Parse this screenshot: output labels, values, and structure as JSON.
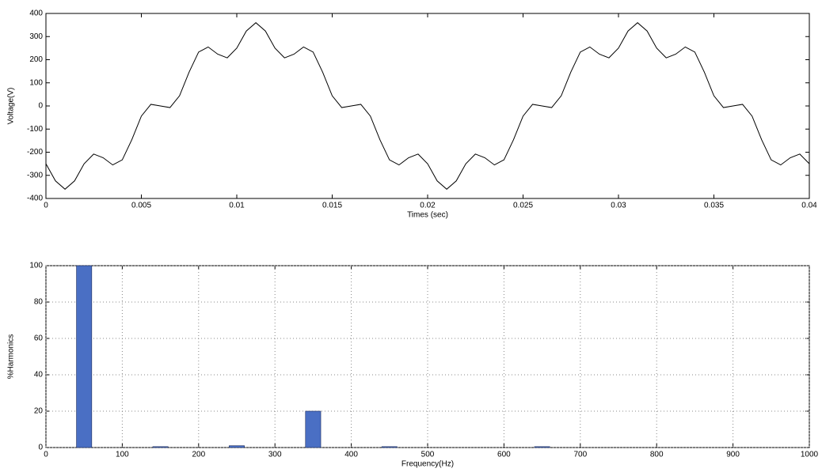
{
  "chart_data": [
    {
      "type": "line",
      "ylabel": "Voltage(V)",
      "xlabel": "Times (sec)",
      "grid": false,
      "xlim": [
        0,
        0.04
      ],
      "xticks": [
        0,
        0.005,
        0.01,
        0.015,
        0.02,
        0.025,
        0.03,
        0.035,
        0.04
      ],
      "ylim": [
        -400,
        400
      ],
      "yticks": [
        -400,
        -300,
        -200,
        -100,
        0,
        100,
        200,
        300,
        400
      ],
      "x": [
        0,
        0.0005,
        0.001,
        0.0015,
        0.002,
        0.0025,
        0.003,
        0.0035,
        0.004,
        0.0045,
        0.005,
        0.0055,
        0.006,
        0.0065,
        0.007,
        0.0075,
        0.008,
        0.0085,
        0.009,
        0.0095,
        0.01,
        0.0105,
        0.011,
        0.0115,
        0.012,
        0.0125,
        0.013,
        0.0135,
        0.014,
        0.0145,
        0.015,
        0.0155,
        0.016,
        0.0165,
        0.017,
        0.0175,
        0.018,
        0.0185,
        0.019,
        0.0195,
        0.02,
        0.0205,
        0.021,
        0.0215,
        0.022,
        0.0225,
        0.023,
        0.0235,
        0.024,
        0.0245,
        0.025,
        0.0255,
        0.026,
        0.0265,
        0.027,
        0.0275,
        0.028,
        0.0285,
        0.029,
        0.0295,
        0.03,
        0.0305,
        0.031,
        0.0315,
        0.032,
        0.0325,
        0.033,
        0.0335,
        0.034,
        0.0345,
        0.035,
        0.0355,
        0.036,
        0.0365,
        0.037,
        0.0375,
        0.038,
        0.0385,
        0.039,
        0.0395,
        0.04
      ],
      "series": [
        {
          "color": "#000000",
          "values": [
            -250,
            -324,
            -360,
            -324,
            -250,
            -208,
            -224,
            -255,
            -233,
            -146,
            -44,
            7,
            0,
            -7,
            44,
            146,
            233,
            255,
            224,
            208,
            250,
            324,
            360,
            324,
            250,
            208,
            224,
            255,
            233,
            146,
            44,
            -7,
            0,
            7,
            -44,
            -146,
            -233,
            -255,
            -224,
            -208,
            -250,
            -324,
            -360,
            -324,
            -250,
            -208,
            -224,
            -255,
            -233,
            -146,
            -44,
            7,
            0,
            -7,
            44,
            146,
            233,
            255,
            224,
            208,
            250,
            324,
            360,
            324,
            250,
            208,
            224,
            255,
            233,
            146,
            44,
            -7,
            0,
            7,
            -44,
            -146,
            -233,
            -255,
            -224,
            -208,
            -250
          ]
        }
      ]
    },
    {
      "type": "bar",
      "ylabel": "%Harmonics",
      "xlabel": "Frequency(Hz)",
      "grid": true,
      "xlim": [
        0,
        1000
      ],
      "xticks": [
        0,
        100,
        200,
        300,
        400,
        500,
        600,
        700,
        800,
        900,
        1000
      ],
      "ylim": [
        0,
        100
      ],
      "yticks": [
        0,
        20,
        40,
        60,
        80,
        100
      ],
      "color": "#4a6fc4",
      "x": [
        50,
        150,
        250,
        350,
        450,
        650
      ],
      "values": [
        100,
        0.5,
        1,
        20,
        0.5,
        0.5
      ]
    }
  ]
}
